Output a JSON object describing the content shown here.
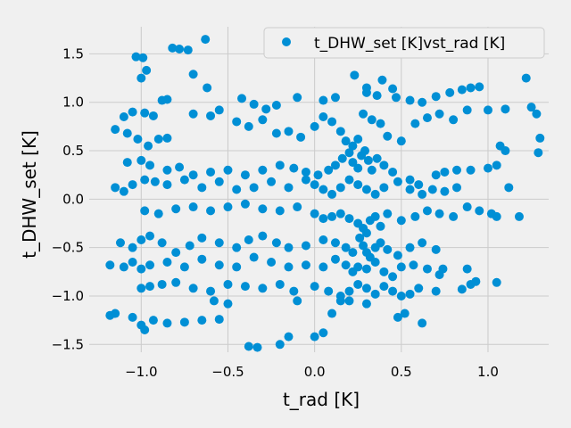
{
  "chart_data": {
    "type": "scatter",
    "title": "",
    "xlabel": "t_rad [K]",
    "ylabel": "t_DHW_set [K]",
    "xlim": [
      -1.3,
      1.35
    ],
    "ylim": [
      -1.58,
      1.78
    ],
    "xticks": [
      -1.0,
      -0.5,
      0.0,
      0.5,
      1.0
    ],
    "xtick_labels": [
      "−1.0",
      "−0.5",
      "0.0",
      "0.5",
      "1.0"
    ],
    "yticks": [
      -1.5,
      -1.0,
      -0.5,
      0.0,
      0.5,
      1.0,
      1.5
    ],
    "ytick_labels": [
      "−1.5",
      "−1.0",
      "−0.5",
      "0.0",
      "0.5",
      "1.0",
      "1.5"
    ],
    "grid": true,
    "legend_position": "top-right",
    "colors": {
      "marker": "#008fd5",
      "background": "#f0f0f0",
      "grid": "#cbcbcb"
    },
    "series": [
      {
        "name": "t_DHW_set [K]vst_rad [K]",
        "note_generator": "points listed below are representative samples",
        "points": [
          [
            -0.63,
            1.65
          ],
          [
            -0.82,
            1.56
          ],
          [
            -0.78,
            1.55
          ],
          [
            -0.73,
            1.54
          ],
          [
            -1.03,
            1.47
          ],
          [
            -0.99,
            1.46
          ],
          [
            -0.7,
            1.29
          ],
          [
            -0.62,
            1.15
          ],
          [
            -1.0,
            1.25
          ],
          [
            -0.97,
            1.33
          ],
          [
            -0.88,
            1.02
          ],
          [
            -0.85,
            1.03
          ],
          [
            -0.55,
            0.92
          ],
          [
            -0.42,
            1.04
          ],
          [
            -0.35,
            0.98
          ],
          [
            -0.28,
            0.93
          ],
          [
            -0.22,
            0.97
          ],
          [
            -0.1,
            1.05
          ],
          [
            0.05,
            1.02
          ],
          [
            0.12,
            1.05
          ],
          [
            0.23,
            1.28
          ],
          [
            0.3,
            1.15
          ],
          [
            0.39,
            1.23
          ],
          [
            0.45,
            1.14
          ],
          [
            0.47,
            1.05
          ],
          [
            0.55,
            1.02
          ],
          [
            0.62,
            1.0
          ],
          [
            0.7,
            1.06
          ],
          [
            0.78,
            1.1
          ],
          [
            0.85,
            1.13
          ],
          [
            0.9,
            1.15
          ],
          [
            0.95,
            1.16
          ],
          [
            1.0,
            0.92
          ],
          [
            1.1,
            0.93
          ],
          [
            1.22,
            1.25
          ],
          [
            1.25,
            0.95
          ],
          [
            1.28,
            0.88
          ],
          [
            0.3,
            1.1
          ],
          [
            0.36,
            1.07
          ],
          [
            -1.1,
            0.85
          ],
          [
            -1.05,
            0.9
          ],
          [
            -0.98,
            0.89
          ],
          [
            -0.93,
            0.86
          ],
          [
            -1.15,
            0.72
          ],
          [
            -1.08,
            0.68
          ],
          [
            -1.02,
            0.62
          ],
          [
            -0.96,
            0.55
          ],
          [
            -0.9,
            0.62
          ],
          [
            -0.85,
            0.63
          ],
          [
            -0.7,
            0.88
          ],
          [
            -0.6,
            0.86
          ],
          [
            -0.45,
            0.8
          ],
          [
            -0.38,
            0.75
          ],
          [
            -0.3,
            0.82
          ],
          [
            -0.22,
            0.68
          ],
          [
            -0.15,
            0.7
          ],
          [
            -0.08,
            0.64
          ],
          [
            0.0,
            0.75
          ],
          [
            0.05,
            0.85
          ],
          [
            0.1,
            0.8
          ],
          [
            0.15,
            0.7
          ],
          [
            0.18,
            0.6
          ],
          [
            0.22,
            0.55
          ],
          [
            0.25,
            0.62
          ],
          [
            0.28,
            0.88
          ],
          [
            0.33,
            0.82
          ],
          [
            0.38,
            0.78
          ],
          [
            0.42,
            0.65
          ],
          [
            0.5,
            0.6
          ],
          [
            0.58,
            0.78
          ],
          [
            0.65,
            0.84
          ],
          [
            0.72,
            0.88
          ],
          [
            0.8,
            0.82
          ],
          [
            0.88,
            0.92
          ],
          [
            1.07,
            0.55
          ],
          [
            1.1,
            0.5
          ],
          [
            1.3,
            0.63
          ],
          [
            1.29,
            0.48
          ],
          [
            -1.08,
            0.38
          ],
          [
            -1.0,
            0.4
          ],
          [
            -0.95,
            0.35
          ],
          [
            -0.85,
            0.3
          ],
          [
            -0.78,
            0.33
          ],
          [
            -0.7,
            0.25
          ],
          [
            -0.6,
            0.28
          ],
          [
            -0.5,
            0.3
          ],
          [
            -0.4,
            0.25
          ],
          [
            -0.3,
            0.3
          ],
          [
            -0.2,
            0.35
          ],
          [
            -0.12,
            0.32
          ],
          [
            -0.05,
            0.28
          ],
          [
            0.02,
            0.25
          ],
          [
            0.08,
            0.3
          ],
          [
            0.12,
            0.35
          ],
          [
            0.16,
            0.42
          ],
          [
            0.2,
            0.48
          ],
          [
            0.22,
            0.38
          ],
          [
            0.25,
            0.32
          ],
          [
            0.27,
            0.45
          ],
          [
            0.29,
            0.5
          ],
          [
            0.31,
            0.4
          ],
          [
            0.33,
            0.3
          ],
          [
            0.36,
            0.42
          ],
          [
            0.4,
            0.35
          ],
          [
            0.45,
            0.28
          ],
          [
            0.55,
            0.2
          ],
          [
            0.6,
            0.15
          ],
          [
            0.7,
            0.25
          ],
          [
            0.75,
            0.28
          ],
          [
            0.82,
            0.3
          ],
          [
            0.9,
            0.3
          ],
          [
            1.0,
            0.32
          ],
          [
            1.05,
            0.35
          ],
          [
            1.12,
            0.12
          ],
          [
            1.18,
            -0.18
          ],
          [
            -1.15,
            0.12
          ],
          [
            -1.1,
            0.08
          ],
          [
            -1.05,
            0.15
          ],
          [
            -0.98,
            0.2
          ],
          [
            -0.92,
            0.18
          ],
          [
            -0.85,
            0.15
          ],
          [
            -0.75,
            0.2
          ],
          [
            -0.65,
            0.12
          ],
          [
            -0.55,
            0.18
          ],
          [
            -0.45,
            0.1
          ],
          [
            -0.35,
            0.12
          ],
          [
            -0.25,
            0.18
          ],
          [
            -0.15,
            0.12
          ],
          [
            -0.05,
            0.2
          ],
          [
            0.0,
            0.15
          ],
          [
            0.05,
            0.1
          ],
          [
            0.1,
            0.05
          ],
          [
            0.15,
            0.12
          ],
          [
            0.2,
            0.2
          ],
          [
            0.25,
            0.15
          ],
          [
            0.3,
            0.1
          ],
          [
            0.35,
            0.05
          ],
          [
            0.4,
            0.12
          ],
          [
            0.48,
            0.18
          ],
          [
            0.55,
            0.1
          ],
          [
            0.62,
            0.05
          ],
          [
            0.68,
            0.1
          ],
          [
            0.75,
            0.08
          ],
          [
            0.82,
            0.12
          ],
          [
            0.88,
            -0.08
          ],
          [
            0.95,
            -0.12
          ],
          [
            1.02,
            -0.15
          ],
          [
            1.05,
            -0.18
          ],
          [
            -0.98,
            -0.12
          ],
          [
            -0.9,
            -0.15
          ],
          [
            -0.8,
            -0.1
          ],
          [
            -0.7,
            -0.08
          ],
          [
            -0.6,
            -0.12
          ],
          [
            -0.5,
            -0.08
          ],
          [
            -0.4,
            -0.05
          ],
          [
            -0.3,
            -0.1
          ],
          [
            -0.2,
            -0.12
          ],
          [
            -0.1,
            -0.08
          ],
          [
            0.0,
            -0.15
          ],
          [
            0.05,
            -0.2
          ],
          [
            0.1,
            -0.18
          ],
          [
            0.15,
            -0.15
          ],
          [
            0.2,
            -0.2
          ],
          [
            0.25,
            -0.25
          ],
          [
            0.28,
            -0.3
          ],
          [
            0.3,
            -0.35
          ],
          [
            0.32,
            -0.22
          ],
          [
            0.35,
            -0.18
          ],
          [
            0.38,
            -0.28
          ],
          [
            0.42,
            -0.15
          ],
          [
            0.5,
            -0.22
          ],
          [
            0.58,
            -0.18
          ],
          [
            0.65,
            -0.12
          ],
          [
            0.72,
            -0.15
          ],
          [
            0.8,
            -0.18
          ],
          [
            -1.12,
            -0.45
          ],
          [
            -1.05,
            -0.5
          ],
          [
            -1.0,
            -0.42
          ],
          [
            -0.95,
            -0.38
          ],
          [
            -0.88,
            -0.45
          ],
          [
            -0.8,
            -0.55
          ],
          [
            -0.72,
            -0.48
          ],
          [
            -0.65,
            -0.4
          ],
          [
            -0.55,
            -0.45
          ],
          [
            -0.45,
            -0.5
          ],
          [
            -0.38,
            -0.42
          ],
          [
            -0.3,
            -0.38
          ],
          [
            -0.22,
            -0.45
          ],
          [
            -0.15,
            -0.5
          ],
          [
            -0.05,
            -0.48
          ],
          [
            0.05,
            -0.42
          ],
          [
            0.12,
            -0.45
          ],
          [
            0.18,
            -0.5
          ],
          [
            0.22,
            -0.55
          ],
          [
            0.26,
            -0.4
          ],
          [
            0.28,
            -0.48
          ],
          [
            0.3,
            -0.55
          ],
          [
            0.32,
            -0.6
          ],
          [
            0.35,
            -0.5
          ],
          [
            0.38,
            -0.45
          ],
          [
            0.42,
            -0.52
          ],
          [
            0.48,
            -0.58
          ],
          [
            0.55,
            -0.5
          ],
          [
            0.62,
            -0.45
          ],
          [
            0.7,
            -0.52
          ],
          [
            -1.18,
            -0.68
          ],
          [
            -1.1,
            -0.7
          ],
          [
            -1.05,
            -0.65
          ],
          [
            -1.0,
            -0.72
          ],
          [
            -0.95,
            -0.68
          ],
          [
            -0.85,
            -0.65
          ],
          [
            -0.75,
            -0.7
          ],
          [
            -0.65,
            -0.62
          ],
          [
            -0.55,
            -0.68
          ],
          [
            -0.45,
            -0.7
          ],
          [
            -0.35,
            -0.6
          ],
          [
            -0.25,
            -0.65
          ],
          [
            -0.15,
            -0.7
          ],
          [
            -0.05,
            -0.68
          ],
          [
            0.05,
            -0.7
          ],
          [
            0.12,
            -0.62
          ],
          [
            0.18,
            -0.68
          ],
          [
            0.22,
            -0.75
          ],
          [
            0.25,
            -0.7
          ],
          [
            0.3,
            -0.72
          ],
          [
            0.35,
            -0.65
          ],
          [
            0.4,
            -0.75
          ],
          [
            0.45,
            -0.8
          ],
          [
            0.5,
            -0.7
          ],
          [
            0.57,
            -0.68
          ],
          [
            0.65,
            -0.72
          ],
          [
            0.72,
            -0.78
          ],
          [
            0.74,
            -0.72
          ],
          [
            0.88,
            -0.72
          ],
          [
            -1.0,
            -0.92
          ],
          [
            -0.95,
            -0.9
          ],
          [
            -0.88,
            -0.88
          ],
          [
            -0.8,
            -0.86
          ],
          [
            -0.7,
            -0.92
          ],
          [
            -0.6,
            -0.95
          ],
          [
            -0.5,
            -0.88
          ],
          [
            -0.4,
            -0.9
          ],
          [
            -0.3,
            -0.92
          ],
          [
            -0.2,
            -0.88
          ],
          [
            -0.12,
            -0.95
          ],
          [
            0.0,
            -0.9
          ],
          [
            0.08,
            -0.95
          ],
          [
            0.15,
            -1.0
          ],
          [
            0.2,
            -0.95
          ],
          [
            0.25,
            -0.88
          ],
          [
            0.3,
            -0.92
          ],
          [
            0.35,
            -0.98
          ],
          [
            0.4,
            -0.9
          ],
          [
            0.45,
            -0.95
          ],
          [
            0.5,
            -1.0
          ],
          [
            0.55,
            -0.98
          ],
          [
            0.6,
            -0.92
          ],
          [
            0.7,
            -0.95
          ],
          [
            0.85,
            -0.93
          ],
          [
            0.9,
            -0.88
          ],
          [
            0.93,
            -0.85
          ],
          [
            1.05,
            -0.86
          ],
          [
            -1.18,
            -1.2
          ],
          [
            -1.15,
            -1.18
          ],
          [
            -1.05,
            -1.22
          ],
          [
            -1.0,
            -1.3
          ],
          [
            -0.98,
            -1.35
          ],
          [
            -0.93,
            -1.25
          ],
          [
            -0.85,
            -1.28
          ],
          [
            -0.75,
            -1.27
          ],
          [
            -0.65,
            -1.25
          ],
          [
            -0.55,
            -1.24
          ],
          [
            -0.38,
            -1.52
          ],
          [
            -0.33,
            -1.53
          ],
          [
            -0.2,
            -1.5
          ],
          [
            -0.15,
            -1.42
          ],
          [
            0.0,
            -1.42
          ],
          [
            0.05,
            -1.38
          ],
          [
            0.1,
            -1.18
          ],
          [
            0.15,
            -1.05
          ],
          [
            0.2,
            -1.05
          ],
          [
            0.3,
            -1.08
          ],
          [
            0.48,
            -1.22
          ],
          [
            0.52,
            -1.18
          ],
          [
            0.62,
            -1.28
          ],
          [
            -0.58,
            -1.05
          ],
          [
            -0.5,
            -1.08
          ],
          [
            -0.1,
            -1.05
          ]
        ]
      }
    ]
  }
}
